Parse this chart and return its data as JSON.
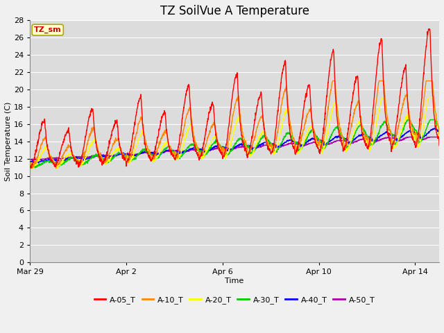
{
  "title": "TZ SoilVue A Temperature",
  "xlabel": "Time",
  "ylabel": "Soil Temperature (C)",
  "ylim": [
    0,
    28
  ],
  "yticks": [
    0,
    2,
    4,
    6,
    8,
    10,
    12,
    14,
    16,
    18,
    20,
    22,
    24,
    26,
    28
  ],
  "plot_bg_color": "#dcdcdc",
  "fig_bg_color": "#f0f0f0",
  "grid_color": "#ffffff",
  "series": [
    {
      "label": "A-05_T",
      "color": "#ff0000"
    },
    {
      "label": "A-10_T",
      "color": "#ff8800"
    },
    {
      "label": "A-20_T",
      "color": "#ffff00"
    },
    {
      "label": "A-30_T",
      "color": "#00cc00"
    },
    {
      "label": "A-40_T",
      "color": "#0000ff"
    },
    {
      "label": "A-50_T",
      "color": "#aa00aa"
    }
  ],
  "xtick_labels": [
    "Mar 29",
    "Apr 2",
    "Apr 6",
    "Apr 10",
    "Apr 14"
  ],
  "xtick_positions": [
    0,
    4,
    8,
    12,
    16
  ],
  "annotation_text": "TZ_sm",
  "annotation_color": "#cc0000",
  "annotation_bg": "#ffffcc",
  "annotation_edge": "#aaaa00",
  "legend_fontsize": 8,
  "title_fontsize": 12,
  "axis_label_fontsize": 8,
  "tick_fontsize": 8,
  "linewidth": 1.0
}
